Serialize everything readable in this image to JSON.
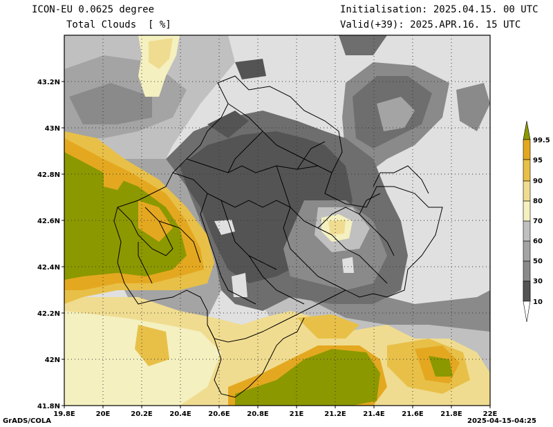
{
  "header": {
    "model": "ICON-EU 0.0625 degree",
    "variable": "Total Clouds  [ %]",
    "init": "Initialisation: 2025.04.15. 00 UTC",
    "valid": "Valid(+39): 2025.APR.16. 15 UTC"
  },
  "axes": {
    "lon_ticks": [
      "19.8E",
      "20E",
      "20.2E",
      "20.4E",
      "20.6E",
      "20.8E",
      "21E",
      "21.2E",
      "21.4E",
      "21.6E",
      "21.8E",
      "22E"
    ],
    "lat_ticks": [
      "43.2N",
      "43N",
      "42.8N",
      "42.6N",
      "42.4N",
      "42.2N",
      "42N",
      "41.8N"
    ]
  },
  "colorbar": {
    "labels": [
      "99.5",
      "95",
      "90",
      "80",
      "70",
      "60",
      "50",
      "30",
      "10"
    ],
    "colors": {
      "c0": "#ffffff",
      "c1": "#545454",
      "c2": "#6e6e6e",
      "c3": "#8a8a8a",
      "c4": "#a4a4a4",
      "c5": "#c0c0c0",
      "c6": "#f4f0c0",
      "c7": "#f0dc90",
      "c8": "#e8c048",
      "c9": "#e4a820",
      "c10": "#8c9800"
    }
  },
  "footer": {
    "credit": "GrADS/COLA",
    "timestamp": "2025-04-15-04:25"
  }
}
